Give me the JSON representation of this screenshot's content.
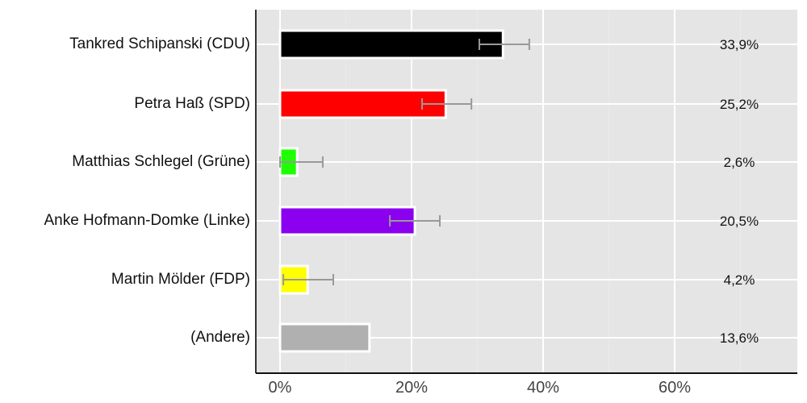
{
  "chart_data": {
    "type": "bar",
    "orientation": "horizontal",
    "title": "",
    "xlabel": "",
    "ylabel": "",
    "xlim": [
      -3.6,
      78.9
    ],
    "x_ticks": [
      "0%",
      "20%",
      "40%",
      "60%"
    ],
    "x_tick_values": [
      0,
      20,
      40,
      60
    ],
    "grid": true,
    "legend": null,
    "categories": [
      "Tankred Schipanski (CDU)",
      "Petra Haß (SPD)",
      "Matthias Schlegel (Grüne)",
      "Anke Hofmann-Domke (Linke)",
      "Martin Mölder (FDP)",
      "(Andere)"
    ],
    "values": [
      33.9,
      25.2,
      2.6,
      20.5,
      4.2,
      13.6
    ],
    "value_labels": [
      "33,9%",
      "25,2%",
      "2,6%",
      "20,5%",
      "4,2%",
      "13,6%"
    ],
    "colors": [
      "#000000",
      "#ff0000",
      "#1eff00",
      "#8b00ee",
      "#ffff00",
      "#b0b0b0"
    ],
    "error_bars": [
      {
        "low": 30.3,
        "high": 37.9
      },
      {
        "low": 21.6,
        "high": 29.1
      },
      {
        "low": 0.0,
        "high": 6.5
      },
      {
        "low": 16.7,
        "high": 24.3
      },
      {
        "low": 0.5,
        "high": 8.1
      },
      null
    ]
  },
  "style": {
    "panel_bg": "#e5e5e5",
    "grid_color": "#ffffff",
    "errorbar_color": "#999999",
    "axis_color": "#333333"
  }
}
